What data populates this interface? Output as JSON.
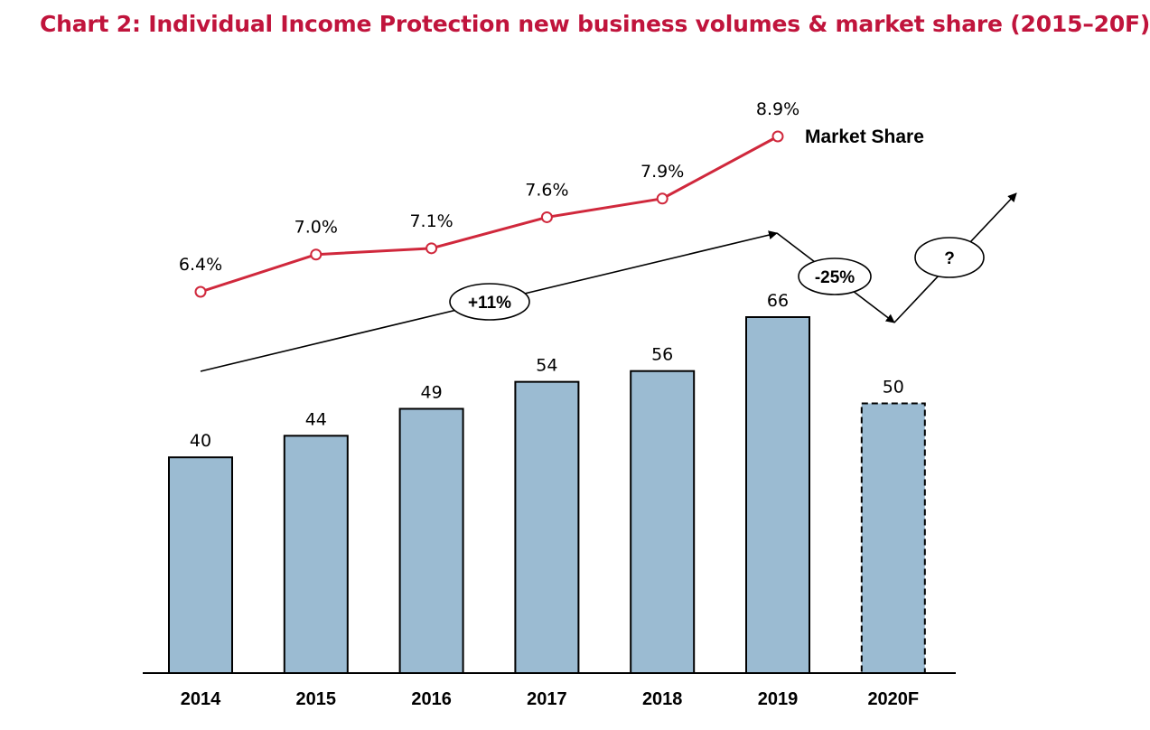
{
  "title": "Chart 2: Individual Income Protection new business volumes & market share (2015–20F)",
  "colors": {
    "title": "#c0143c",
    "bar_fill": "#9bbbd2",
    "bar_stroke": "#000000",
    "share_line": "#d0283c",
    "trend_arrow": "#000000"
  },
  "chart_data": {
    "type": "bar",
    "categories": [
      "2014",
      "2015",
      "2016",
      "2017",
      "2018",
      "2019",
      "2020F"
    ],
    "series": [
      {
        "type": "bar",
        "values": [
          40,
          44,
          49,
          54,
          56,
          66,
          50
        ],
        "value_labels": [
          "40",
          "44",
          "49",
          "54",
          "56",
          "66",
          "50"
        ],
        "forecast_categories": [
          "2020F"
        ]
      },
      {
        "type": "line",
        "name": "Market Share",
        "x": [
          "2014",
          "2015",
          "2016",
          "2017",
          "2018",
          "2019"
        ],
        "values": [
          6.4,
          7.0,
          7.1,
          7.6,
          7.9,
          8.9
        ],
        "value_labels": [
          "6.4%",
          "7.0%",
          "7.1%",
          "7.6%",
          "7.9%",
          "8.9%"
        ]
      }
    ],
    "annotations": [
      {
        "text": "+11%",
        "kind": "growth-trend-arrow",
        "from": "2014",
        "to": "2019"
      },
      {
        "text": "-25%",
        "kind": "decline-arrow",
        "from": "2019",
        "to": "2020F"
      },
      {
        "text": "?",
        "kind": "uncertain-recovery-arrow",
        "from": "2020F"
      }
    ],
    "xlabel": "",
    "ylabel": "",
    "ylim": [
      0,
      66
    ],
    "grid": false,
    "legend": "inline-label-at-line-end"
  }
}
